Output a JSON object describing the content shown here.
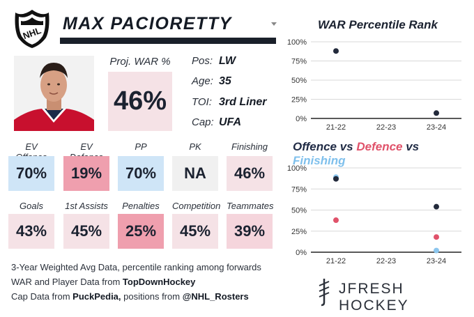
{
  "player": {
    "name": "MAX PACIORETTY",
    "proj_war_label": "Proj. WAR %",
    "proj_war_value": "46%",
    "info": [
      {
        "label": "Pos:",
        "value": "LW"
      },
      {
        "label": "Age:",
        "value": "35"
      },
      {
        "label": "TOI:",
        "value": "3rd Liner"
      },
      {
        "label": "Cap:",
        "value": "UFA"
      }
    ]
  },
  "metrics_row1": [
    {
      "label": "EV Offence",
      "value": "70%",
      "color": "#cfe5f7"
    },
    {
      "label": "EV Defence",
      "value": "19%",
      "color": "#ef9fae"
    },
    {
      "label": "PP",
      "value": "70%",
      "color": "#cfe5f7"
    },
    {
      "label": "PK",
      "value": "NA",
      "color": "#f0f0f0"
    },
    {
      "label": "Finishing",
      "value": "46%",
      "color": "#f5e2e6"
    }
  ],
  "metrics_row2": [
    {
      "label": "Goals",
      "value": "43%",
      "color": "#f5e2e6"
    },
    {
      "label": "1st Assists",
      "value": "45%",
      "color": "#f5e2e6"
    },
    {
      "label": "Penalties",
      "value": "25%",
      "color": "#ef9fae"
    },
    {
      "label": "Competition",
      "value": "45%",
      "color": "#f5e2e6"
    },
    {
      "label": "Teammates",
      "value": "39%",
      "color": "#f5d5dc"
    }
  ],
  "footer": {
    "line1": "3-Year Weighted Avg Data, percentile ranking among forwards",
    "line2_prefix": "WAR and Player Data from ",
    "line2_bold": "TopDownHockey",
    "line3_prefix": "Cap Data from ",
    "line3_bold1": "PuckPedia,",
    "line3_mid": " positions from ",
    "line3_bold2": "@NHL_Rosters"
  },
  "brand": {
    "text": "JFRESH HOCKEY"
  },
  "chart_data": [
    {
      "type": "scatter",
      "title": "WAR Percentile Rank",
      "categories": [
        "21-22",
        "22-23",
        "23-24"
      ],
      "series": [
        {
          "values": [
            88,
            null,
            7
          ],
          "color": "#232a3b"
        }
      ],
      "ylim": [
        0,
        100
      ],
      "yticks": [
        "0%",
        "25%",
        "50%",
        "75%",
        "100%"
      ],
      "grid": true
    },
    {
      "type": "scatter",
      "title_parts": [
        {
          "text": "Offence",
          "color": "#1f2a44"
        },
        {
          "text": " vs ",
          "color": "#1f2a44"
        },
        {
          "text": "Defence",
          "color": "#e0526a"
        },
        {
          "text": " vs ",
          "color": "#1f2a44"
        },
        {
          "text": "Finishing",
          "color": "#7fc0ec"
        }
      ],
      "categories": [
        "21-22",
        "22-23",
        "23-24"
      ],
      "series": [
        {
          "values": [
            89,
            null,
            2
          ],
          "color": "#8cc6ee"
        },
        {
          "values": [
            38,
            null,
            18
          ],
          "color": "#e0526a"
        },
        {
          "values": [
            87,
            null,
            54
          ],
          "color": "#232a3b"
        }
      ],
      "ylim": [
        0,
        100
      ],
      "yticks": [
        "0%",
        "25%",
        "50%",
        "75%",
        "100%"
      ],
      "grid": true
    }
  ]
}
